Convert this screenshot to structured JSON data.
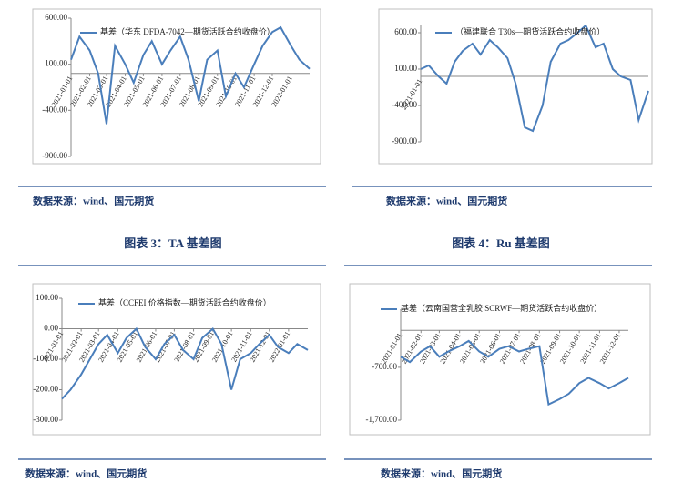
{
  "chart_data": [
    {
      "type": "line",
      "x": [
        "2021-01-01",
        "2021-01-15",
        "2021-02-01",
        "2021-02-15",
        "2021-03-01",
        "2021-03-15",
        "2021-04-01",
        "2021-04-15",
        "2021-05-01",
        "2021-05-15",
        "2021-06-01",
        "2021-06-15",
        "2021-07-01",
        "2021-07-15",
        "2021-08-01",
        "2021-08-15",
        "2021-09-01",
        "2021-09-15",
        "2021-10-01",
        "2021-10-15",
        "2021-11-01",
        "2021-11-15",
        "2021-12-01",
        "2021-12-15",
        "2022-01-01",
        "2022-01-15",
        "2022-02-01"
      ],
      "series": [
        {
          "name": "基差（华东 DFDA-7042—期货活跃合约收盘价）",
          "color": "#4a7ebb",
          "values": [
            150,
            400,
            250,
            0,
            -550,
            300,
            100,
            -100,
            200,
            350,
            100,
            250,
            400,
            150,
            -300,
            150,
            250,
            -250,
            0,
            -150,
            100,
            300,
            450,
            500,
            300,
            150,
            50
          ]
        }
      ],
      "ylim": [
        -900,
        600
      ],
      "yticks": [
        {
          "value": 600,
          "label": "600.00"
        },
        {
          "value": 100,
          "label": "100.00"
        },
        {
          "value": -400,
          "label": "-400.00"
        },
        {
          "value": -900,
          "label": "-900.00"
        }
      ],
      "xticks": [
        "2021-01-01",
        "2021-02-01",
        "2021-03-01",
        "2021-04-01",
        "2021-05-01",
        "2021-06-01",
        "2021-07-01",
        "2021-08-01",
        "2021-09-01",
        "2021-10-01",
        "2021-11-01",
        "2021-12-01",
        "2022-01-01"
      ]
    },
    {
      "type": "line",
      "x": [
        "2021-01-01",
        "2021-01-15",
        "2021-02-01",
        "2021-02-15",
        "2021-03-01",
        "2021-03-15",
        "2021-04-01",
        "2021-04-15",
        "2021-05-01",
        "2021-05-15",
        "2021-06-01",
        "2021-06-15",
        "2021-07-01",
        "2021-07-15",
        "2021-08-01",
        "2021-08-15",
        "2021-09-01",
        "2021-09-15",
        "2021-10-01",
        "2021-10-15",
        "2021-11-01",
        "2021-11-15",
        "2021-12-01",
        "2021-12-15",
        "2022-01-01",
        "2022-01-15",
        "2022-02-01"
      ],
      "series": [
        {
          "name": "（福建联合 T30s—期货活跃合约收盘价）",
          "color": "#4a7ebb",
          "values": [
            100,
            150,
            0,
            -100,
            200,
            350,
            450,
            300,
            500,
            400,
            250,
            -100,
            -700,
            -750,
            -400,
            200,
            450,
            500,
            600,
            700,
            400,
            450,
            100,
            0,
            -50,
            -600,
            -200
          ]
        }
      ],
      "ylim": [
        -900,
        700
      ],
      "yticks": [
        {
          "value": 600,
          "label": "600.00"
        },
        {
          "value": 100,
          "label": "100.00"
        },
        {
          "value": -400,
          "label": "-400.00"
        },
        {
          "value": -900,
          "label": "-900.00"
        }
      ],
      "xticks": [
        "2021-01-01"
      ]
    },
    {
      "type": "line",
      "x": [
        "2021-01-01",
        "2021-01-15",
        "2021-02-01",
        "2021-02-15",
        "2021-03-01",
        "2021-03-15",
        "2021-04-01",
        "2021-04-15",
        "2021-05-01",
        "2021-05-15",
        "2021-06-01",
        "2021-06-15",
        "2021-07-01",
        "2021-07-15",
        "2021-08-01",
        "2021-08-15",
        "2021-09-01",
        "2021-09-15",
        "2021-10-01",
        "2021-10-15",
        "2021-11-01",
        "2021-11-15",
        "2021-12-01",
        "2021-12-15",
        "2022-01-01",
        "2022-01-15",
        "2022-02-01"
      ],
      "series": [
        {
          "name": "基差（CCFEI 价格指数—期货活跃合约收盘价）",
          "color": "#4a7ebb",
          "values": [
            -230,
            -200,
            -150,
            -100,
            -50,
            -20,
            -80,
            -30,
            0,
            -60,
            -100,
            -50,
            -20,
            -70,
            -100,
            -30,
            0,
            -50,
            -200,
            -100,
            -80,
            -50,
            -20,
            -60,
            -80,
            -50,
            -70
          ]
        }
      ],
      "ylim": [
        -300,
        100
      ],
      "yticks": [
        {
          "value": 100,
          "label": "100.00"
        },
        {
          "value": 0,
          "label": "0.00"
        },
        {
          "value": -100,
          "label": "-100.00"
        },
        {
          "value": -200,
          "label": "-200.00"
        },
        {
          "value": -300,
          "label": "-300.00"
        }
      ],
      "xticks": [
        "2021-01-01",
        "2021-02-01",
        "2021-03-01",
        "2021-04-01",
        "2021-05-01",
        "2021-06-01",
        "2021-07-01",
        "2021-08-01",
        "2021-09-01",
        "2021-10-01",
        "2021-11-01",
        "2021-12-01",
        "2022-01-01"
      ]
    },
    {
      "type": "line",
      "x": [
        "2021-01-01",
        "2021-01-15",
        "2021-02-01",
        "2021-02-15",
        "2021-03-01",
        "2021-03-15",
        "2021-04-01",
        "2021-04-15",
        "2021-05-01",
        "2021-05-15",
        "2021-06-01",
        "2021-06-15",
        "2021-07-01",
        "2021-07-15",
        "2021-08-01",
        "2021-08-15",
        "2021-09-01",
        "2021-09-15",
        "2021-10-01",
        "2021-10-15",
        "2021-11-01",
        "2021-11-15",
        "2021-12-01",
        "2021-12-15"
      ],
      "series": [
        {
          "name": "基差（云南国营全乳胶 SCRWF—期货活跃合约收盘价）",
          "color": "#4a7ebb",
          "values": [
            -500,
            -600,
            -400,
            -300,
            -500,
            -400,
            -300,
            -200,
            -400,
            -500,
            -350,
            -300,
            -400,
            -350,
            -300,
            -1400,
            -1300,
            -1200,
            -1000,
            -900,
            -1000,
            -1100,
            -1000,
            -900
          ]
        }
      ],
      "ylim": [
        -1700,
        400
      ],
      "yticks": [
        {
          "value": -700,
          "label": "-700.00"
        },
        {
          "value": -1700,
          "label": "-1,700.00"
        }
      ],
      "xticks": [
        "2021-01-01",
        "2021-02-01",
        "2021-03-01",
        "2021-04-01",
        "2021-05-01",
        "2021-06-01",
        "2021-07-01",
        "2021-08-01",
        "2021-09-01",
        "2021-10-01",
        "2021-11-01",
        "2021-12-01"
      ]
    }
  ],
  "captions": [
    "图表 3：TA 基差图",
    "图表 4：Ru 基差图"
  ],
  "sources": [
    "数据来源：wind、国元期货",
    "数据来源：wind、国元期货",
    "数据来源：wind、国元期货",
    "数据来源：wind、国元期货"
  ]
}
